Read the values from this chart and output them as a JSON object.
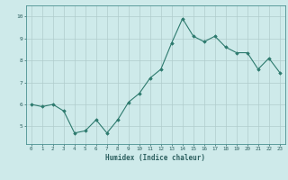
{
  "x": [
    0,
    1,
    2,
    3,
    4,
    5,
    6,
    7,
    8,
    9,
    10,
    11,
    12,
    13,
    14,
    15,
    16,
    17,
    18,
    19,
    20,
    21,
    22,
    23
  ],
  "y": [
    6.0,
    5.9,
    6.0,
    5.7,
    4.7,
    4.8,
    5.3,
    4.7,
    5.3,
    6.1,
    6.5,
    7.2,
    7.6,
    8.8,
    9.9,
    9.1,
    8.85,
    9.1,
    8.6,
    8.35,
    8.35,
    7.6,
    8.1,
    7.45
  ],
  "xlabel": "Humidex (Indice chaleur)",
  "bg_color": "#ceeaea",
  "line_color": "#2d7a6e",
  "marker_color": "#2d7a6e",
  "grid_color": "#b0cccc",
  "axis_color": "#4a9090",
  "tick_color": "#2d6060",
  "yticks": [
    5,
    6,
    7,
    8,
    9,
    10
  ],
  "ylim": [
    4.2,
    10.5
  ],
  "xlim": [
    -0.5,
    23.5
  ],
  "xticks": [
    0,
    1,
    2,
    3,
    4,
    5,
    6,
    7,
    8,
    9,
    10,
    11,
    12,
    13,
    14,
    15,
    16,
    17,
    18,
    19,
    20,
    21,
    22,
    23
  ]
}
